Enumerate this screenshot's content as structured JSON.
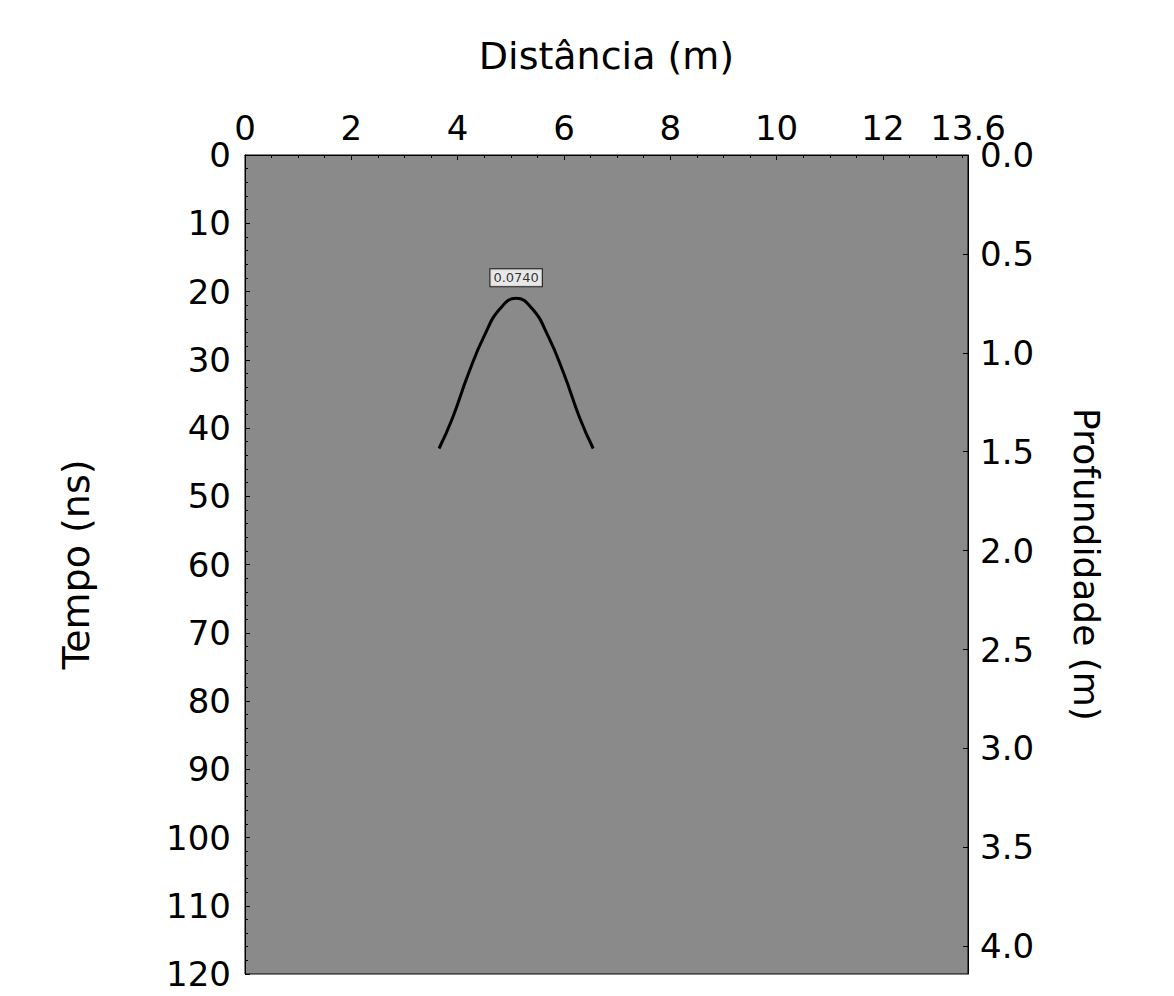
{
  "chart_data": {
    "type": "line",
    "x_label": "Distância (m)",
    "y_label": "Tempo (ns)",
    "y2_label": "Profundidade (m)",
    "xlim": [
      0,
      13.6
    ],
    "xticks": [
      0,
      2,
      4,
      6,
      8,
      10,
      12
    ],
    "ylim": [
      0,
      120
    ],
    "yticks": [
      0,
      10,
      20,
      30,
      40,
      50,
      60,
      70,
      80,
      90,
      100,
      110,
      120
    ],
    "y2lim": [
      0,
      4.14
    ],
    "y2ticks": [
      {
        "value": 0,
        "label": "0.0"
      },
      {
        "value": 0.5,
        "label": "0.5"
      },
      {
        "value": 1,
        "label": "1.0"
      },
      {
        "value": 1.5,
        "label": "1.5"
      },
      {
        "value": 2,
        "label": "2.0"
      },
      {
        "value": 2.5,
        "label": "2.5"
      },
      {
        "value": 3,
        "label": "3.0"
      },
      {
        "value": 3.5,
        "label": "3.5"
      },
      {
        "value": 4,
        "label": "4.0"
      }
    ],
    "x": [
      3.65,
      3.9,
      4.2,
      4.5,
      4.8,
      5.1,
      5.4,
      5.7,
      6.0,
      6.3,
      6.55
    ],
    "values": [
      43,
      38.6,
      32.1,
      26.5,
      22.5,
      21,
      22.5,
      26.5,
      32.1,
      38.6,
      43
    ],
    "color": "#000000",
    "annotations": [
      {
        "text": "0.0740",
        "x": 5.1,
        "y": 21
      }
    ],
    "grid": false
  }
}
